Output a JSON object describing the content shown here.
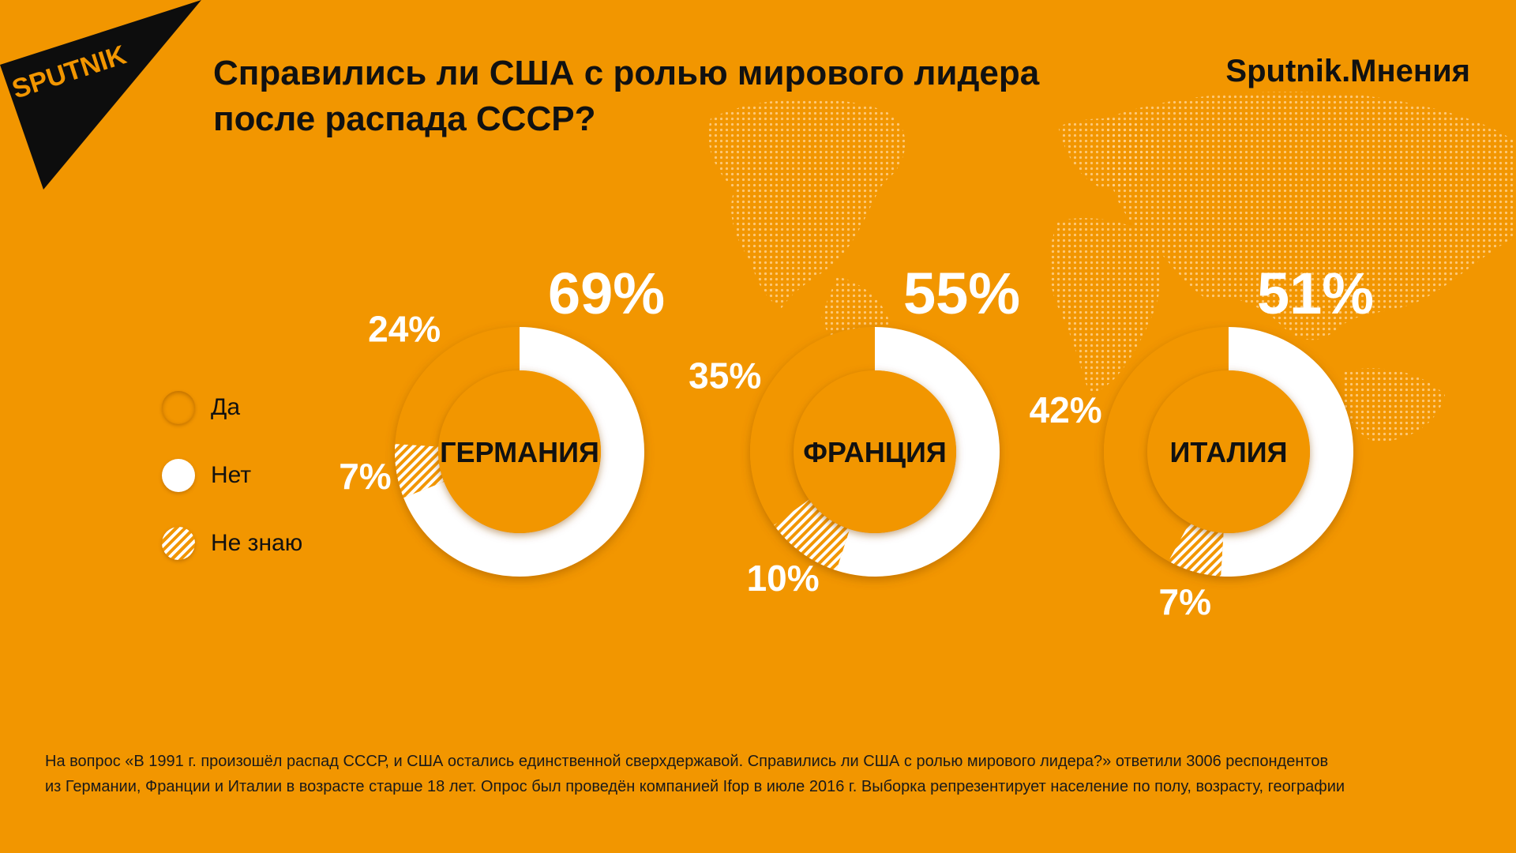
{
  "header": {
    "logo_text": "SPUTNIK",
    "title_line1": "Справились ли США с ролью мирового лидера",
    "title_line2": "после распада СССР?",
    "brand": "Sputnik.Мнения"
  },
  "legend": [
    {
      "label": "Да",
      "style": "yes"
    },
    {
      "label": "Нет",
      "style": "no"
    },
    {
      "label": "Не знаю",
      "style": "dontknow"
    }
  ],
  "colors": {
    "background": "#F29600",
    "no": "#FFFFFF",
    "text": "#111111"
  },
  "chart_data": {
    "type": "pie",
    "variant": "donut",
    "series_names": [
      "Да",
      "Нет",
      "Не знаю"
    ],
    "charts": [
      {
        "country": "ГЕРМАНИЯ",
        "values": {
          "yes": 24,
          "no": 69,
          "dontknow": 7
        },
        "labels": {
          "yes": "24%",
          "no": "69%",
          "dontknow": "7%"
        }
      },
      {
        "country": "ФРАНЦИЯ",
        "values": {
          "yes": 35,
          "no": 55,
          "dontknow": 10
        },
        "labels": {
          "yes": "35%",
          "no": "55%",
          "dontknow": "10%"
        }
      },
      {
        "country": "ИТАЛИЯ",
        "values": {
          "yes": 42,
          "no": 51,
          "dontknow": 7
        },
        "labels": {
          "yes": "42%",
          "no": "51%",
          "dontknow": "7%"
        }
      }
    ]
  },
  "footnote": {
    "line1": "На вопрос «В 1991 г. произошёл распад СССР, и США остались единственной сверхдержавой. Справились ли США с ролью мирового лидера?» ответили 3006 респондентов",
    "line2": "из Германии, Франции и Италии в возрасте старше 18 лет. Опрос был проведён компанией Ifop в июле 2016 г. Выборка репрезентирует население по полу, возрасту, географии"
  }
}
